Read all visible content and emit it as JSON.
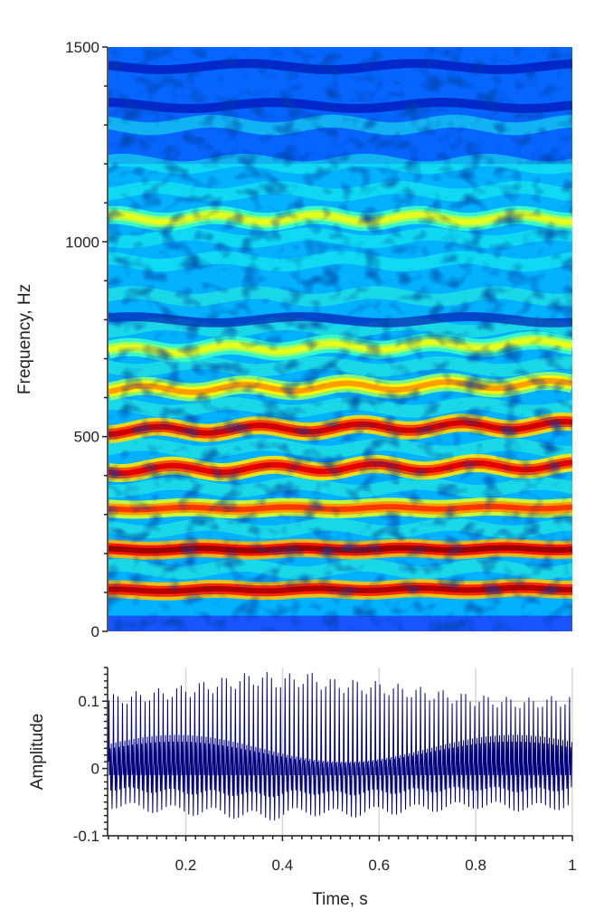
{
  "chart_data": [
    {
      "type": "heatmap",
      "ylabel": "Frequency, Hz",
      "xlim": [
        0.04,
        1.0
      ],
      "ylim": [
        0,
        1500
      ],
      "y_ticks": [
        0,
        500,
        1000,
        1500
      ],
      "y_tick_labels": [
        "0",
        "500",
        "1000",
        "1500"
      ],
      "colormap": "jet",
      "harmonic_bands": [
        {
          "freq_start": 105,
          "freq_end": 110,
          "intensity": 0.95
        },
        {
          "freq_start": 210,
          "freq_end": 212,
          "intensity": 0.97
        },
        {
          "freq_start": 315,
          "freq_end": 318,
          "intensity": 0.82
        },
        {
          "freq_start": 415,
          "freq_end": 425,
          "intensity": 0.9
        },
        {
          "freq_start": 515,
          "freq_end": 530,
          "intensity": 0.92
        },
        {
          "freq_start": 620,
          "freq_end": 635,
          "intensity": 0.72
        },
        {
          "freq_start": 720,
          "freq_end": 740,
          "intensity": 0.6
        },
        {
          "freq_start": 1060,
          "freq_end": 1060,
          "intensity": 0.6
        }
      ]
    },
    {
      "type": "line",
      "xlabel": "Time, s",
      "ylabel": "Amplitude",
      "xlim": [
        0.04,
        1.0
      ],
      "ylim": [
        -0.1,
        0.15
      ],
      "x_ticks": [
        0.2,
        0.4,
        0.6,
        0.8,
        1.0
      ],
      "x_tick_labels": [
        "0.2",
        "0.4",
        "0.6",
        "0.8",
        "1"
      ],
      "y_ticks": [
        -0.1,
        0,
        0.1
      ],
      "y_tick_labels": [
        "-0.1",
        "0",
        "0.1"
      ],
      "grid": true,
      "series": [
        {
          "color": "#00007f",
          "pulse_rate_hz": 107,
          "envelope_time": [
            0.04,
            0.1,
            0.2,
            0.3,
            0.35,
            0.4,
            0.45,
            0.5,
            0.6,
            0.7,
            0.8,
            0.9,
            1.0
          ],
          "envelope_max": [
            0.11,
            0.115,
            0.125,
            0.14,
            0.145,
            0.14,
            0.145,
            0.135,
            0.13,
            0.12,
            0.11,
            0.105,
            0.11
          ],
          "envelope_min": [
            -0.06,
            -0.065,
            -0.07,
            -0.075,
            -0.08,
            -0.075,
            -0.07,
            -0.075,
            -0.07,
            -0.065,
            -0.06,
            -0.065,
            -0.06
          ]
        }
      ]
    }
  ]
}
